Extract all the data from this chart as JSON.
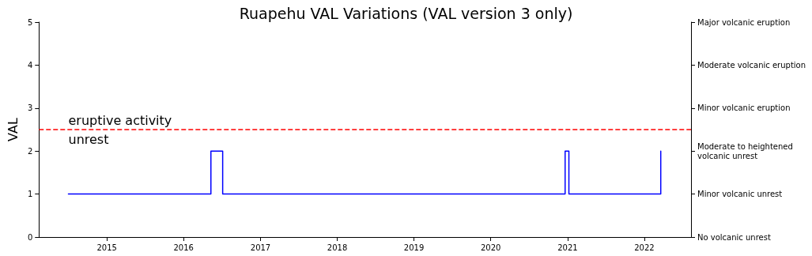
{
  "chart_data": {
    "type": "step",
    "title": "Ruapehu VAL Variations (VAL version 3 only)",
    "ylabel": "VAL",
    "x": [
      "2014-07-02",
      "2016-05-10",
      "2016-07-05",
      "2020-12-20",
      "2021-01-07",
      "2022-03-20"
    ],
    "series": [
      {
        "color": "#0000ff",
        "values": [
          1,
          2,
          1,
          2,
          1,
          2
        ]
      }
    ],
    "xlim": [
      "2014-02-12",
      "2022-08-11"
    ],
    "xticks": [
      "2015",
      "2016",
      "2017",
      "2018",
      "2019",
      "2020",
      "2021",
      "2022"
    ],
    "ylim": [
      0,
      5
    ],
    "yticks": [
      0,
      1,
      2,
      3,
      4,
      5
    ],
    "y2_categories": [
      "Major volcanic eruption",
      "Moderate volcanic eruption",
      "Minor volcanic eruption",
      "Moderate to heightened volcanic unrest",
      "Minor volcanic unrest",
      "No volcanic unrest"
    ],
    "ref_lines": [
      {
        "axis": "y",
        "value": 2.5,
        "color": "#ff0000",
        "line_style": "dashed"
      }
    ],
    "annotations": [
      "eruptive activity",
      "unrest"
    ],
    "grid": false,
    "marker": "none",
    "line_style": "solid"
  }
}
